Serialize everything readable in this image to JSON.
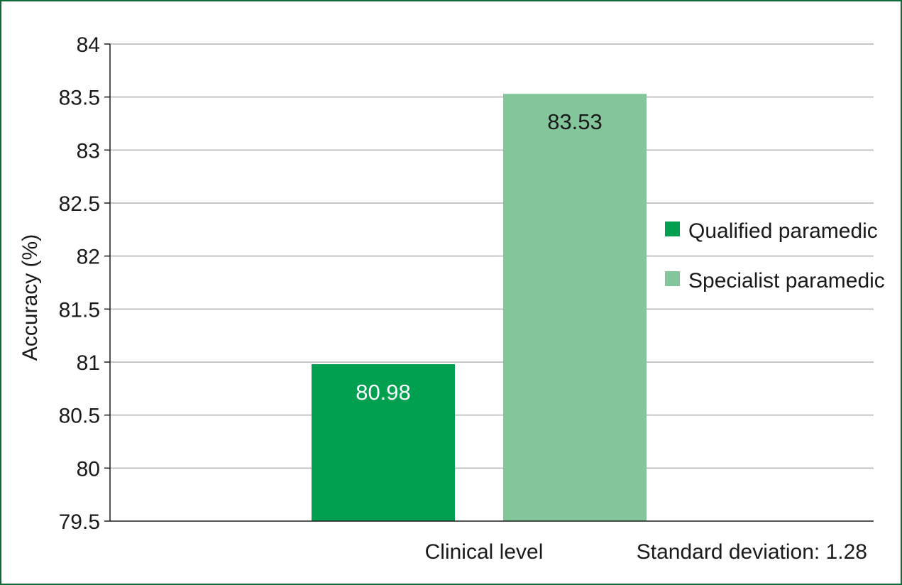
{
  "chart_data": {
    "type": "bar",
    "categories": [
      "Clinical level"
    ],
    "series": [
      {
        "name": "Qualified paramedic",
        "values": [
          80.98
        ],
        "color": "#00a050",
        "label_color": "#ffffff"
      },
      {
        "name": "Specialist paramedic",
        "values": [
          83.53
        ],
        "color": "#84c69b",
        "label_color": "#1a1a1a"
      }
    ],
    "data_labels": [
      "80.98",
      "83.53"
    ],
    "title": "",
    "xlabel": "Clinical level",
    "ylabel": "Accuracy (%)",
    "ylim": [
      79.5,
      84
    ],
    "yticks": [
      79.5,
      80,
      80.5,
      81,
      81.5,
      82,
      82.5,
      83,
      83.5,
      84
    ],
    "ytick_labels": [
      "79.5",
      "80",
      "80.5",
      "81",
      "81.5",
      "82",
      "82.5",
      "83",
      "83.5",
      "84"
    ],
    "grid": true,
    "legend_position": "right",
    "annotation": "Standard deviation: 1.28",
    "frame_color": "#0f6b3a",
    "grid_color": "#b3b3b3",
    "axis_color": "#1a1a1a"
  }
}
